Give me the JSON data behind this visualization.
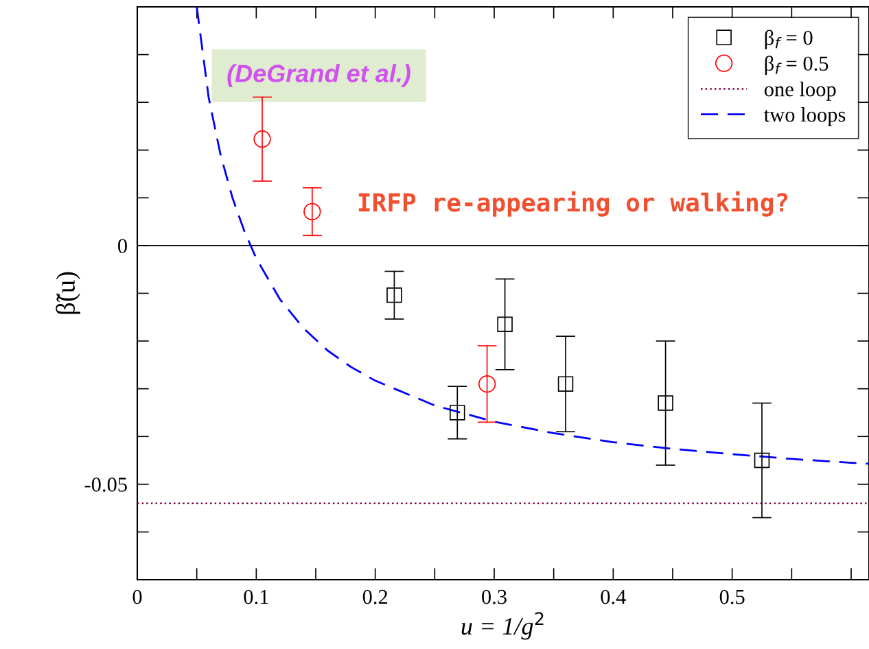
{
  "chart_data": {
    "type": "scatter",
    "xlabel": "u = 1/g$^{2}$",
    "ylabel": "β̃(u)",
    "xlim": [
      0,
      0.615
    ],
    "ylim": [
      -0.07,
      0.05
    ],
    "xticks": [
      0,
      0.1,
      0.2,
      0.3,
      0.4,
      0.5
    ],
    "yticks": [
      -0.05,
      0
    ],
    "grid": false,
    "legend": "top right",
    "series": [
      {
        "name": "β$_{f}$ = 0",
        "marker": "square",
        "color": "#000000",
        "x": [
          0.216,
          0.269,
          0.309,
          0.36,
          0.444,
          0.525
        ],
        "values": [
          -0.0104,
          -0.035,
          -0.0165,
          -0.029,
          -0.033,
          -0.045
        ],
        "errors": [
          0.005,
          0.0055,
          0.0095,
          0.01,
          0.013,
          0.012
        ]
      },
      {
        "name": "β$_{f}$ = 0.5",
        "marker": "circle",
        "color": "#ff0000",
        "x": [
          0.105,
          0.147,
          0.294
        ],
        "values": [
          0.0223,
          0.0071,
          -0.029
        ],
        "errors": [
          0.0088,
          0.005,
          0.008
        ]
      },
      {
        "name": "one loop",
        "type": "line",
        "marker": "none",
        "line_style": "dotted",
        "color": "#800040",
        "x": [
          0,
          0.615
        ],
        "values": [
          -0.054,
          -0.054
        ]
      },
      {
        "name": "two loops",
        "type": "line",
        "marker": "none",
        "line_style": "dashed",
        "color": "#0000ff",
        "x": [
          0.05,
          0.06,
          0.07,
          0.08,
          0.09,
          0.1,
          0.12,
          0.14,
          0.16,
          0.18,
          0.2,
          0.25,
          0.3,
          0.35,
          0.4,
          0.45,
          0.5,
          0.55,
          0.6,
          0.615
        ],
        "values": [
          0.05,
          0.031,
          0.019,
          0.01,
          0.003,
          -0.0027,
          -0.0113,
          -0.0174,
          -0.022,
          -0.0255,
          -0.0283,
          -0.0335,
          -0.0369,
          -0.0393,
          -0.0412,
          -0.0426,
          -0.0437,
          -0.0447,
          -0.0455,
          -0.0457
        ]
      }
    ],
    "ref_lines": [
      {
        "axis": "y",
        "value": 0,
        "color": "#000000",
        "line_style": "solid"
      }
    ],
    "annotations": [
      "(DeGrand et al.)",
      "IRFP re-appearing or walking?"
    ]
  }
}
